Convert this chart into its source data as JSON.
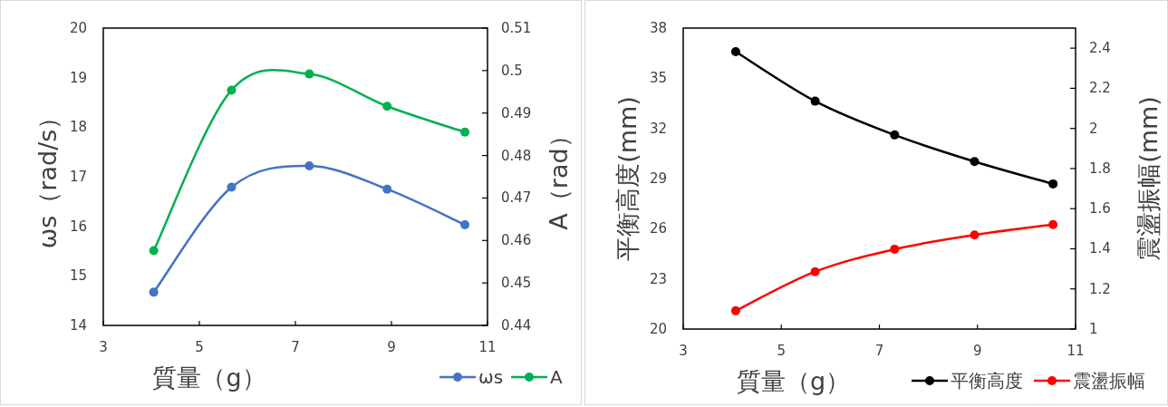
{
  "chart_data": [
    {
      "type": "line",
      "xlabel": "質量（g）",
      "ylabel": "ωs（rad/s）",
      "y2label": "A（rad）",
      "x": [
        4.05,
        5.67,
        7.29,
        8.91,
        10.53
      ],
      "xlim": [
        3,
        11
      ],
      "xticks": [
        3,
        5,
        7,
        9,
        11
      ],
      "ylim": [
        14,
        20
      ],
      "yticks": [
        14,
        15,
        16,
        17,
        18,
        19,
        20
      ],
      "y2lim": [
        0.44,
        0.51
      ],
      "y2ticks": [
        0.44,
        0.45,
        0.46,
        0.47,
        0.48,
        0.49,
        0.5,
        0.51
      ],
      "legend": "bottom right",
      "marker": "circle",
      "series": [
        {
          "name": "ωs",
          "color": "#4472c4",
          "values": [
            14.67,
            16.79,
            17.22,
            16.75,
            16.03
          ]
        },
        {
          "name": "A",
          "color": "#00b050",
          "axis": "y2",
          "values": [
            0.4576,
            0.4954,
            0.4992,
            0.4916,
            0.4855
          ]
        }
      ]
    },
    {
      "type": "line",
      "xlabel": "質量（g）",
      "ylabel": "平衡高度(mm)",
      "y2label": "震盪振幅(mm)",
      "x": [
        4.07,
        5.69,
        7.31,
        8.94,
        10.54
      ],
      "xlim": [
        3,
        11
      ],
      "xticks": [
        3,
        5,
        7,
        9,
        11
      ],
      "ylim": [
        20,
        38
      ],
      "yticks": [
        20,
        23,
        26,
        29,
        32,
        35,
        38
      ],
      "y2lim": [
        1,
        2.5
      ],
      "y2ticks": [
        1,
        1.2,
        1.4,
        1.6,
        1.8,
        2,
        2.2,
        2.4
      ],
      "legend": "bottom right",
      "marker": "circle",
      "series": [
        {
          "name": "平衡高度",
          "color": "#000000",
          "values": [
            36.59,
            33.63,
            31.61,
            30.02,
            28.68
          ]
        },
        {
          "name": "震盪振幅",
          "color": "#ff0000",
          "axis": "y2",
          "values": [
            1.091,
            1.286,
            1.398,
            1.469,
            1.521
          ]
        }
      ]
    }
  ]
}
